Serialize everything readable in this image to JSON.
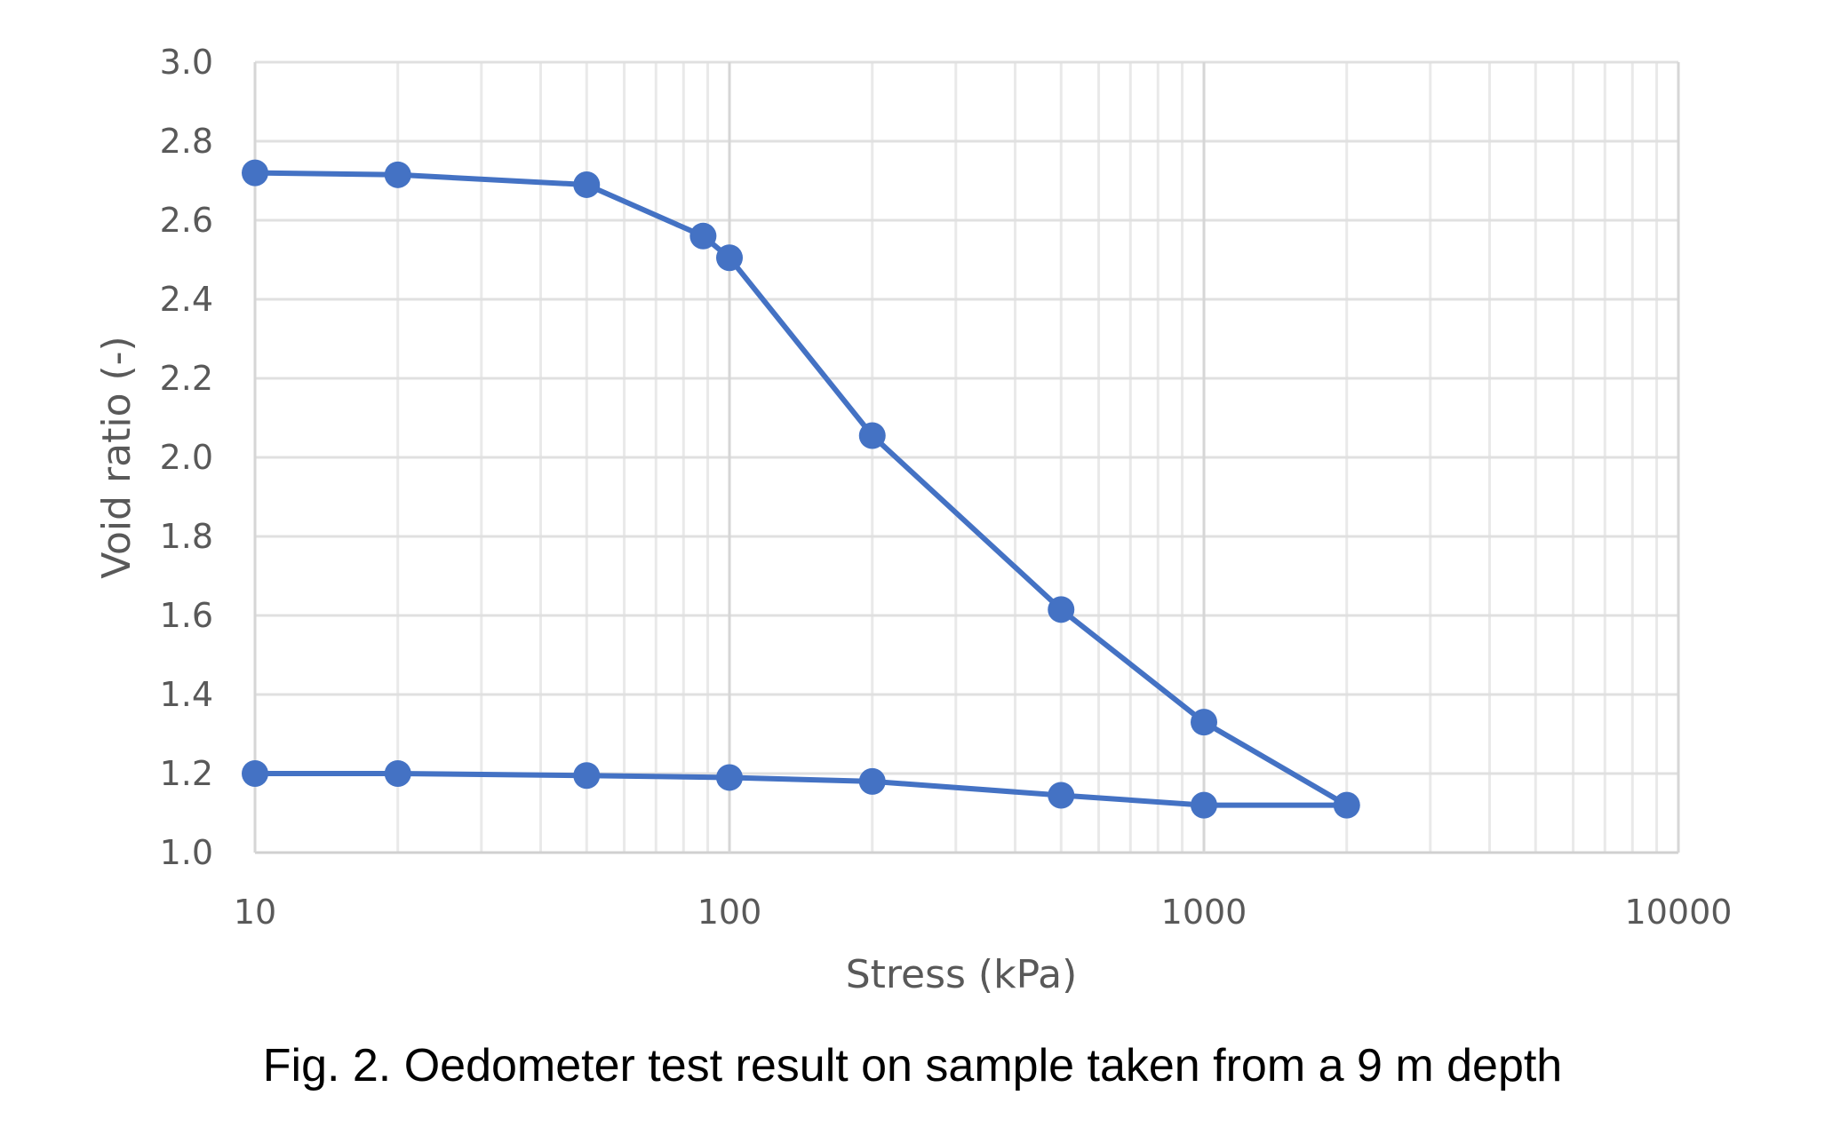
{
  "caption": "Fig. 2. Oedometer test result on sample taken from a 9 m depth",
  "chart_data": {
    "type": "line",
    "title": "",
    "xlabel": "Stress (kPa)",
    "ylabel": "Void ratio (-)",
    "xscale": "log",
    "xlim": [
      10,
      10000
    ],
    "ylim": [
      1.0,
      3.0
    ],
    "xticks": [
      "10",
      "100",
      "1000",
      "10000"
    ],
    "yticks": [
      "1.0",
      "1.2",
      "1.4",
      "1.6",
      "1.8",
      "2.0",
      "2.2",
      "2.4",
      "2.6",
      "2.8",
      "3.0"
    ],
    "grid": true,
    "legend": "none",
    "color": "#4472C4",
    "series": [
      {
        "x": [
          10,
          20,
          50,
          88,
          100,
          200,
          500,
          1000,
          2000,
          1000,
          500,
          200,
          100,
          50,
          20,
          10
        ],
        "y": [
          2.72,
          2.715,
          2.69,
          2.56,
          2.505,
          2.055,
          1.615,
          1.33,
          1.12,
          1.12,
          1.145,
          1.18,
          1.19,
          1.195,
          1.2,
          1.2
        ]
      }
    ]
  }
}
